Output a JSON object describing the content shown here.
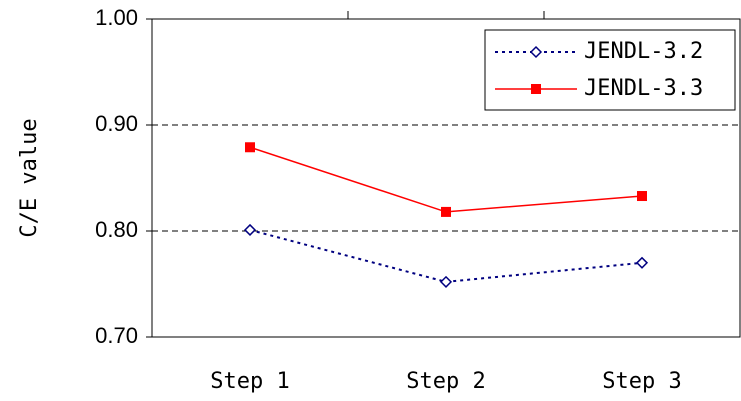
{
  "chart_data": {
    "type": "line",
    "y_label": "C/E value",
    "categories": [
      "Step 1",
      "Step 2",
      "Step 3"
    ],
    "series": [
      {
        "name": "JENDL-3.2",
        "color": "#000080",
        "values": [
          0.801,
          0.752,
          0.77
        ]
      },
      {
        "name": "JENDL-3.3",
        "color": "#ff0000",
        "values": [
          0.879,
          0.818,
          0.833
        ]
      }
    ],
    "ylim": [
      0.7,
      1.0
    ],
    "yticks": [
      {
        "value": 0.7,
        "label": "0.70"
      },
      {
        "value": 0.8,
        "label": "0.80"
      },
      {
        "value": 0.9,
        "label": "0.90"
      },
      {
        "value": 1.0,
        "label": "1.00"
      }
    ],
    "grid": true,
    "legend": "upper right"
  }
}
